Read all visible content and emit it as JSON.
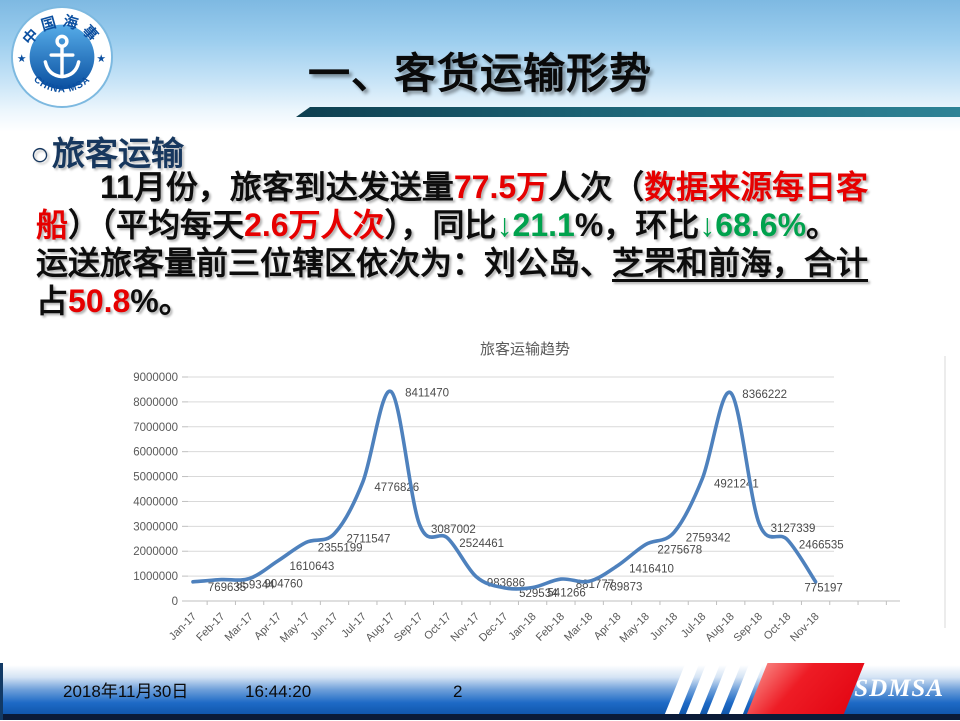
{
  "header": {
    "title": "一、客货运输形势",
    "logo": {
      "ring_top": "中国海事",
      "ring_bottom": "CHINA MSA",
      "star": "★"
    }
  },
  "section": {
    "bullet": "○",
    "title": "旅客运输"
  },
  "paragraph": {
    "lines": [
      [
        {
          "t": "　　11月份，旅客到达发送量",
          "c": "k"
        },
        {
          "t": "77.5万",
          "c": "r"
        },
        {
          "t": "人次（",
          "c": "k"
        },
        {
          "t": "数据来源每日客",
          "c": "r"
        }
      ],
      [
        {
          "t": "船",
          "c": "r"
        },
        {
          "t": "）（平均每天",
          "c": "k"
        },
        {
          "t": "2.6万人次",
          "c": "r"
        },
        {
          "t": "），同比",
          "c": "k"
        },
        {
          "t": "↓21.1",
          "c": "g"
        },
        {
          "t": "%，环比",
          "c": "k"
        },
        {
          "t": "↓68.6%",
          "c": "g"
        },
        {
          "t": "。",
          "c": "k"
        }
      ],
      [
        {
          "t": "运送旅客量前三位辖区依次为：刘公岛、",
          "c": "k"
        },
        {
          "t": "芝罘和前海，合计",
          "c": "k",
          "u": true
        }
      ],
      [
        {
          "t": "占",
          "c": "k"
        },
        {
          "t": "50.8",
          "c": "r"
        },
        {
          "t": "%。",
          "c": "k"
        }
      ]
    ]
  },
  "chart_data": {
    "type": "line",
    "title": "旅客运输趋势",
    "categories": [
      "Jan-17",
      "Feb-17",
      "Mar-17",
      "Apr-17",
      "May-17",
      "Jun-17",
      "Jul-17",
      "Aug-17",
      "Sep-17",
      "Oct-17",
      "Nov-17",
      "Dec-17",
      "Jan-18",
      "Feb-18",
      "Mar-18",
      "Apr-18",
      "May-18",
      "Jun-18",
      "Jul-18",
      "Aug-18",
      "Sep-18",
      "Oct-18",
      "Nov-18"
    ],
    "values": [
      769635,
      859344,
      904760,
      1610643,
      2355199,
      2711547,
      4776826,
      8411470,
      3087002,
      2524461,
      983686,
      529534,
      541266,
      881777,
      789873,
      1416410,
      2275678,
      2759342,
      4921241,
      8366222,
      3127339,
      2466535,
      775197
    ],
    "xlabel": "",
    "ylabel": "",
    "ylim": [
      0,
      9000000
    ],
    "ytick_step": 1000000,
    "grid": true,
    "legend": "none",
    "line_color": "#4e81bd",
    "axis_text_color": "#595959",
    "data_label_color": "#4a4a4a"
  },
  "footer": {
    "date": "2018年11月30日",
    "time": "16:44:20",
    "page": "2",
    "brand": "SDMSA"
  }
}
